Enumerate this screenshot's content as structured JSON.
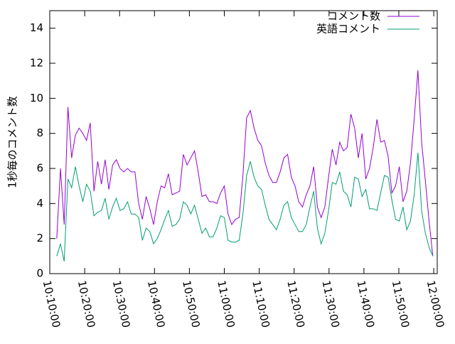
{
  "chart_data": {
    "type": "line",
    "ylabel": "1秒毎のコメント数",
    "x": [
      "10:12:00",
      "10:13:04",
      "10:14:08",
      "10:15:12",
      "10:16:16",
      "10:17:20",
      "10:18:24",
      "10:19:28",
      "10:20:32",
      "10:21:36",
      "10:22:40",
      "10:23:44",
      "10:24:48",
      "10:25:52",
      "10:26:56",
      "10:28:00",
      "10:29:04",
      "10:30:08",
      "10:31:12",
      "10:32:16",
      "10:33:20",
      "10:34:24",
      "10:35:28",
      "10:36:32",
      "10:37:36",
      "10:38:40",
      "10:39:44",
      "10:40:48",
      "10:41:52",
      "10:42:56",
      "10:44:00",
      "10:45:04",
      "10:46:08",
      "10:47:12",
      "10:48:16",
      "10:49:20",
      "10:50:24",
      "10:51:28",
      "10:52:32",
      "10:53:36",
      "10:54:40",
      "10:55:44",
      "10:56:48",
      "10:57:52",
      "10:58:56",
      "11:00:00",
      "11:01:04",
      "11:02:08",
      "11:03:12",
      "11:04:16",
      "11:05:20",
      "11:06:24",
      "11:07:28",
      "11:08:32",
      "11:09:36",
      "11:10:40",
      "11:11:44",
      "11:12:48",
      "11:13:52",
      "11:14:56",
      "11:16:00",
      "11:17:04",
      "11:18:08",
      "11:19:12",
      "11:20:16",
      "11:21:20",
      "11:22:24",
      "11:23:28",
      "11:24:32",
      "11:25:36",
      "11:26:40",
      "11:27:44",
      "11:28:48",
      "11:29:52",
      "11:30:56",
      "11:32:00",
      "11:33:04",
      "11:34:08",
      "11:35:12",
      "11:36:16",
      "11:37:20",
      "11:38:24",
      "11:39:28",
      "11:40:32",
      "11:41:36",
      "11:42:40",
      "11:43:44",
      "11:44:48",
      "11:45:52",
      "11:46:56",
      "11:48:00",
      "11:49:04",
      "11:50:08",
      "11:51:12",
      "11:52:16",
      "11:53:20",
      "11:54:24",
      "11:55:28",
      "11:56:32",
      "11:57:36",
      "11:58:40",
      "11:59:44"
    ],
    "series": [
      {
        "name": "コメント数",
        "color": "#9400d3",
        "values": [
          2.0,
          6.0,
          2.8,
          9.5,
          6.6,
          7.9,
          8.3,
          8.0,
          7.6,
          8.6,
          4.7,
          6.4,
          5.1,
          6.5,
          4.8,
          6.2,
          6.5,
          6.0,
          5.8,
          6.0,
          5.8,
          5.8,
          4.0,
          3.1,
          4.4,
          3.7,
          2.8,
          4.1,
          5.0,
          4.9,
          5.7,
          4.5,
          4.6,
          4.7,
          6.8,
          6.2,
          6.6,
          7.0,
          5.8,
          4.4,
          4.5,
          4.1,
          4.1,
          4.0,
          4.6,
          5.0,
          3.4,
          2.8,
          3.1,
          3.2,
          5.6,
          8.9,
          9.3,
          8.3,
          7.6,
          7.3,
          6.3,
          5.6,
          5.2,
          5.2,
          5.8,
          6.6,
          6.8,
          5.5,
          5.0,
          4.1,
          3.8,
          4.5,
          5.0,
          6.1,
          3.8,
          3.2,
          3.8,
          5.5,
          7.1,
          6.2,
          7.5,
          7.0,
          7.2,
          9.1,
          8.3,
          6.6,
          8.0,
          5.4,
          6.0,
          7.2,
          8.8,
          7.5,
          7.6,
          6.7,
          4.6,
          5.0,
          6.1,
          4.1,
          4.7,
          6.3,
          8.8,
          11.6,
          7.5,
          5.3,
          3.0,
          1.0
        ]
      },
      {
        "name": "英語コメント",
        "color": "#009e73",
        "values": [
          1.0,
          1.7,
          0.7,
          5.4,
          4.9,
          6.1,
          5.0,
          4.1,
          5.1,
          4.7,
          3.3,
          3.5,
          3.6,
          4.3,
          3.1,
          3.8,
          4.3,
          3.6,
          3.7,
          4.1,
          3.4,
          3.4,
          3.2,
          1.9,
          2.6,
          2.4,
          1.7,
          2.0,
          2.5,
          3.1,
          3.6,
          2.7,
          2.8,
          3.1,
          4.1,
          3.9,
          3.4,
          3.9,
          3.1,
          2.3,
          2.6,
          2.1,
          2.1,
          2.6,
          3.3,
          3.2,
          1.9,
          1.8,
          1.8,
          1.9,
          3.4,
          5.6,
          6.4,
          5.5,
          5.0,
          4.8,
          3.9,
          3.1,
          2.8,
          2.5,
          3.1,
          3.9,
          4.1,
          3.2,
          2.8,
          2.4,
          2.4,
          2.8,
          3.8,
          4.7,
          2.6,
          1.7,
          2.3,
          3.6,
          5.2,
          5.1,
          5.8,
          4.7,
          4.5,
          3.8,
          5.5,
          5.4,
          4.4,
          4.8,
          3.7,
          3.7,
          3.6,
          4.6,
          5.6,
          5.5,
          4.2,
          3.1,
          3.0,
          3.8,
          2.5,
          3.0,
          4.5,
          6.9,
          3.6,
          2.3,
          1.5,
          1.0
        ]
      }
    ],
    "xlim": [
      "10:10:00",
      "12:01:00"
    ],
    "xticks": [
      "10:10:00",
      "10:20:00",
      "10:30:00",
      "10:40:00",
      "10:50:00",
      "11:00:00",
      "11:10:00",
      "11:20:00",
      "11:30:00",
      "11:40:00",
      "11:50:00",
      "12:00:00"
    ],
    "ylim": [
      0,
      15
    ],
    "yticks": [
      0,
      2,
      4,
      6,
      8,
      10,
      12,
      14
    ],
    "grid": false,
    "legend": "top-right"
  }
}
